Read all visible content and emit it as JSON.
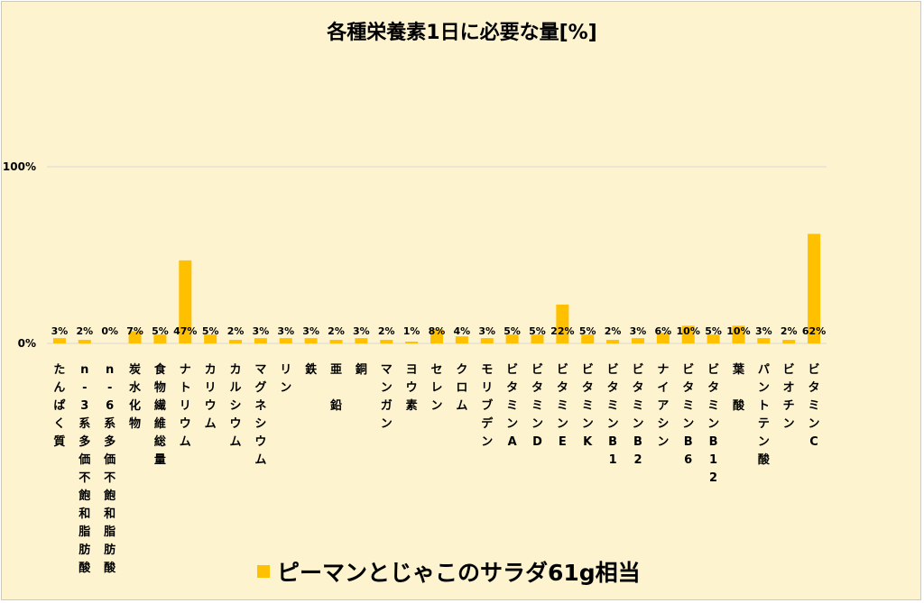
{
  "chart_data": {
    "type": "bar",
    "title": "各種栄養素1日に必要な量[%]",
    "xlabel": "",
    "ylabel": "",
    "ylim": [
      0,
      100
    ],
    "y_ticks": [
      "0%",
      "100%"
    ],
    "grid": "horizontal",
    "legend_position": "bottom",
    "colors": {
      "bar": "#ffc000",
      "background": "#fdf3cf",
      "grid": "#d9d9d9"
    },
    "categories": [
      "たんぱく質",
      "n-3系多価不飽和脂肪酸",
      "n-6系多価不飽和脂肪酸",
      "炭水化物",
      "食物繊維総量",
      "ナトリウム",
      "カリウム",
      "カルシウム",
      "マグネシウム",
      "リン",
      "鉄",
      "亜　鉛",
      "銅",
      "マンガン",
      "ヨウ素",
      "セレン",
      "クロム",
      "モリブデン",
      "ビタミンA",
      "ビタミンD",
      "ビタミンE",
      "ビタミンK",
      "ビタミンB1",
      "ビタミンB2",
      "ナイアシン",
      "ビタミンB6",
      "ビタミンB12",
      "葉　酸",
      "パントテン酸",
      "ビオチン",
      "ビタミンC"
    ],
    "series": [
      {
        "name": "ピーマンとじゃこのサラダ61g相当",
        "values": [
          3,
          2,
          0,
          7,
          5,
          47,
          5,
          2,
          3,
          3,
          3,
          2,
          3,
          2,
          1,
          8,
          4,
          3,
          5,
          5,
          22,
          5,
          2,
          3,
          6,
          10,
          5,
          10,
          3,
          2,
          62
        ],
        "labels": [
          "3%",
          "2%",
          "0%",
          "7%",
          "5%",
          "47%",
          "5%",
          "2%",
          "3%",
          "3%",
          "3%",
          "2%",
          "3%",
          "2%",
          "1%",
          "8%",
          "4%",
          "3%",
          "5%",
          "5%",
          "22%",
          "5%",
          "2%",
          "3%",
          "6%",
          "10%",
          "5%",
          "10%",
          "3%",
          "2%",
          "62%"
        ]
      }
    ]
  }
}
